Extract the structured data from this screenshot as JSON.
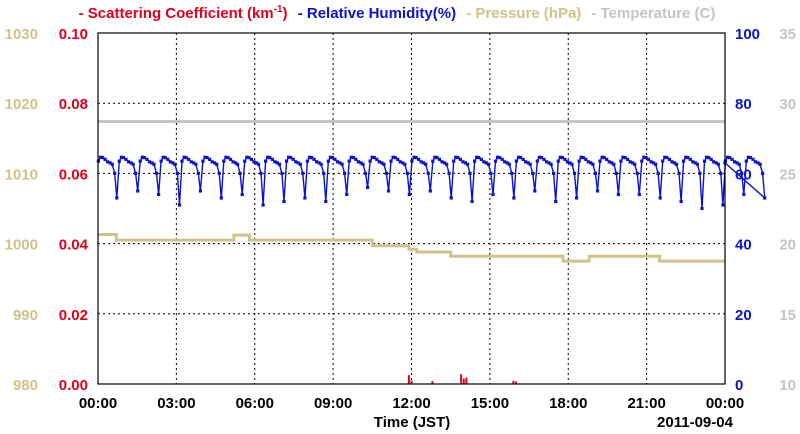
{
  "legend": {
    "scattering": "- Scattering Coefficient (km",
    "scattering_sup": "-1",
    "scattering_end": ")",
    "humidity": "- Relative Humidity(%)",
    "pressure": "- Pressure (hPa)",
    "temperature": "- Temperature (C)"
  },
  "chart_data": {
    "type": "line",
    "xlabel": "Time (JST)",
    "date_label": "2011-09-04",
    "x_ticks": [
      "00:00",
      "03:00",
      "06:00",
      "09:00",
      "12:00",
      "15:00",
      "18:00",
      "21:00",
      "00:00"
    ],
    "xlim_hours": [
      0,
      24
    ],
    "axes": {
      "pressure": {
        "ylim": [
          980,
          1030
        ],
        "ticks": [
          "980",
          "990",
          "1000",
          "1010",
          "1020",
          "1030"
        ],
        "color": "#cfc38a",
        "side": "left-outer"
      },
      "scattering": {
        "ylim": [
          0,
          0.1
        ],
        "ticks": [
          "0.00",
          "0.02",
          "0.04",
          "0.06",
          "0.08",
          "0.10"
        ],
        "color": "#e0001a",
        "side": "left-inner"
      },
      "humidity": {
        "ylim": [
          0,
          100
        ],
        "ticks": [
          "0",
          "20",
          "40",
          "60",
          "80",
          "100"
        ],
        "color": "#0a14c8",
        "side": "right-inner"
      },
      "temperature": {
        "ylim": [
          10,
          35
        ],
        "ticks": [
          "10",
          "15",
          "20",
          "25",
          "30",
          "35"
        ],
        "color": "#c4c4c4",
        "side": "right-outer"
      }
    },
    "series": [
      {
        "name": "Relative Humidity(%)",
        "axis": "humidity",
        "color": "#0a14c8",
        "baseline": 63,
        "plateau": 64,
        "cycle_hours": 0.8,
        "dip_values": [
          53,
          55,
          54,
          51,
          55,
          53,
          54,
          51,
          52,
          53,
          52,
          54,
          56,
          55,
          54,
          55,
          53,
          52,
          54,
          53,
          55,
          52,
          53,
          55,
          54,
          54,
          53,
          52,
          50,
          51,
          54,
          53
        ]
      },
      {
        "name": "Pressure (hPa)",
        "axis": "pressure",
        "color": "#cfc38a",
        "steps": [
          [
            0,
            1001.3
          ],
          [
            0.7,
            1000.5
          ],
          [
            5.2,
            1001.2
          ],
          [
            5.8,
            1000.5
          ],
          [
            10.5,
            999.7
          ],
          [
            11.9,
            999.2
          ],
          [
            12.2,
            998.8
          ],
          [
            13.5,
            998.2
          ],
          [
            17.8,
            997.5
          ],
          [
            18.8,
            998.2
          ],
          [
            21.5,
            997.5
          ],
          [
            24,
            997.5
          ]
        ]
      },
      {
        "name": "Temperature (C)",
        "axis": "temperature",
        "color": "#c4c4c4",
        "points": [
          [
            0,
            28.7
          ],
          [
            24,
            28.7
          ]
        ]
      },
      {
        "name": "Scattering Coefficient (km-1)",
        "axis": "scattering",
        "color": "#e0001a",
        "spikes": [
          [
            11.9,
            0.0025
          ],
          [
            12.0,
            0.001
          ],
          [
            12.8,
            0.0008
          ],
          [
            13.9,
            0.0028
          ],
          [
            14.0,
            0.0015
          ],
          [
            14.1,
            0.0018
          ],
          [
            15.9,
            0.0009
          ],
          [
            16.0,
            0.0007
          ]
        ]
      }
    ]
  }
}
